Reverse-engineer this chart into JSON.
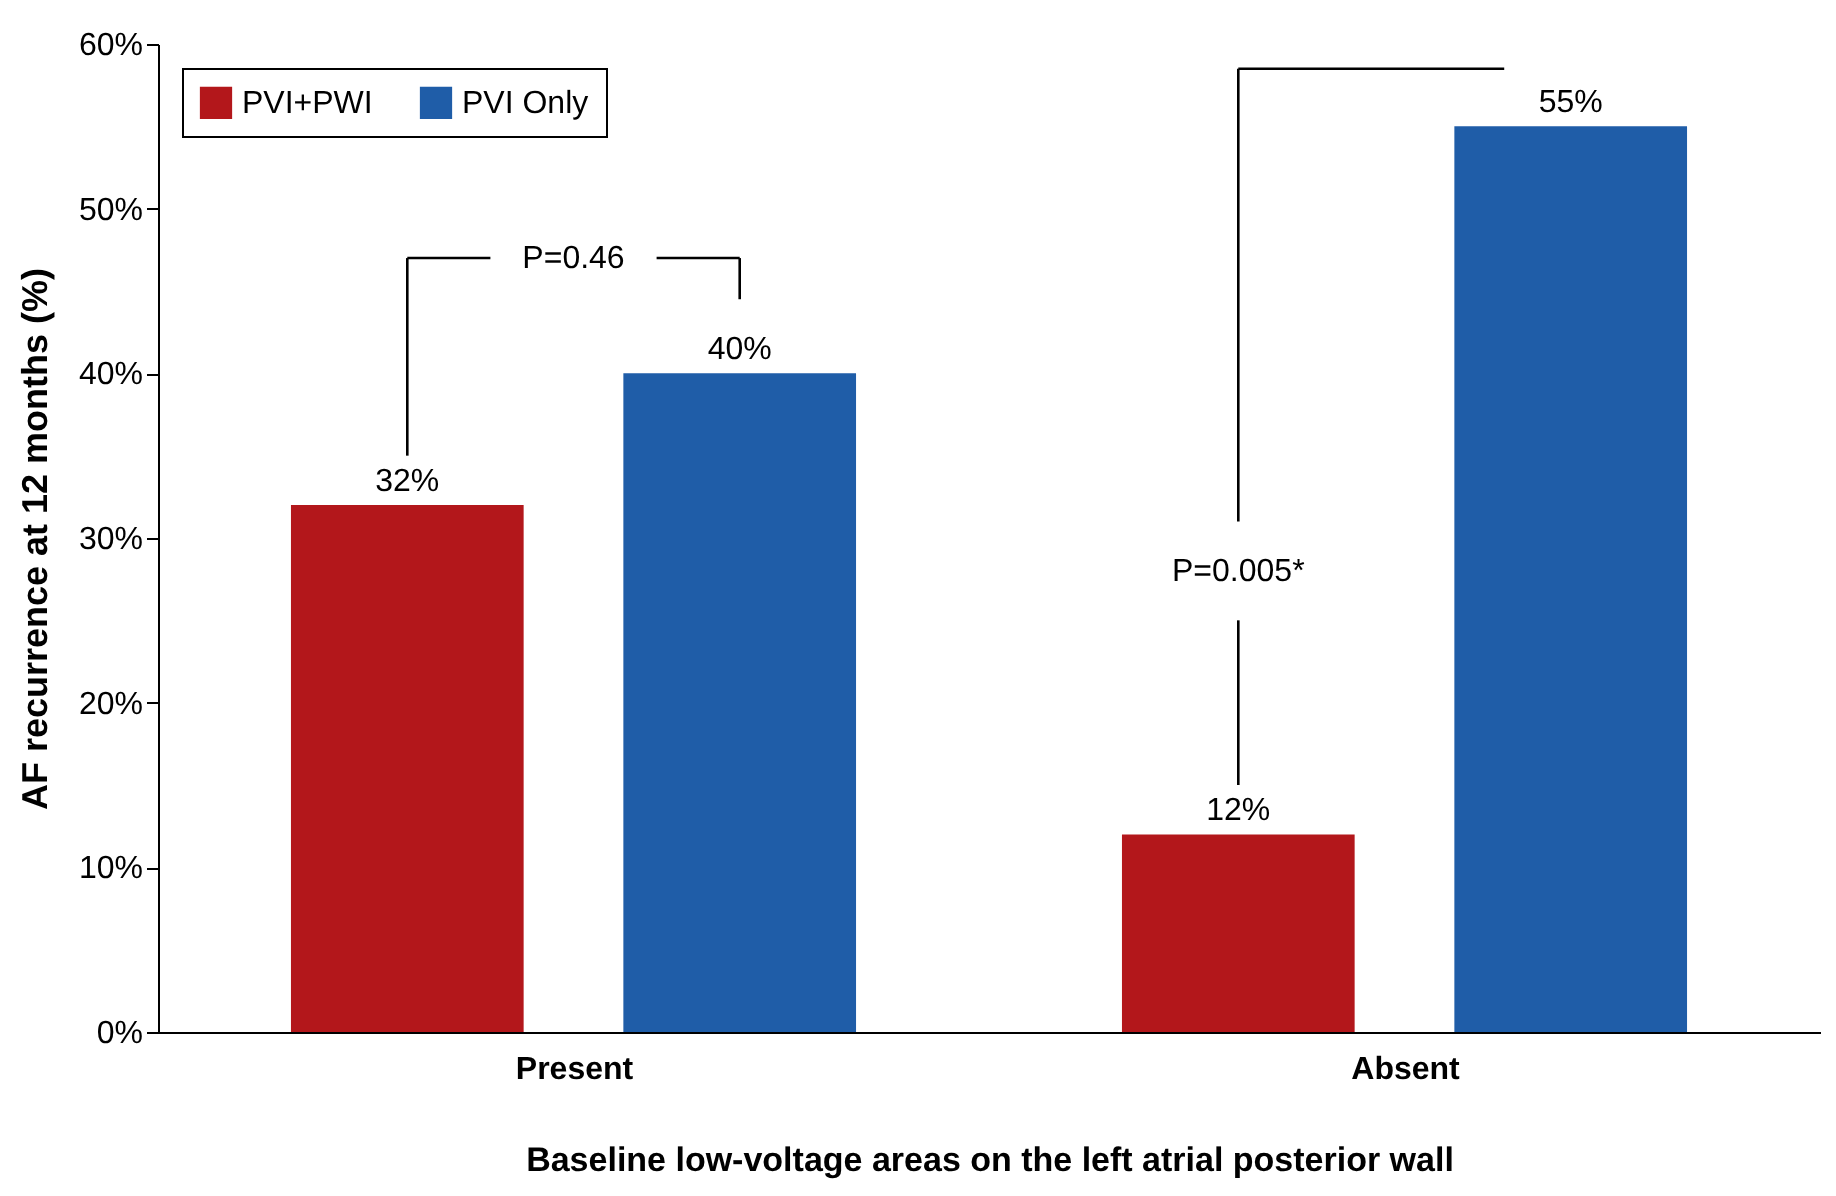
{
  "chart_data": {
    "type": "bar",
    "categories": [
      "Present",
      "Absent"
    ],
    "series": [
      {
        "name": "PVI+PWI",
        "color": "#b3171b",
        "values": [
          32,
          12
        ],
        "value_labels": [
          "32%",
          "12%"
        ]
      },
      {
        "name": "PVI Only",
        "color": "#1f5da8",
        "values": [
          40,
          55
        ],
        "value_labels": [
          "40%",
          "55%"
        ]
      }
    ],
    "xlabel": "Baseline low-voltage areas on the left atrial posterior wall",
    "ylabel": "AF recurrence at 12 months (%)",
    "ylim": [
      0,
      60
    ],
    "yticks": [
      {
        "value": 0,
        "label": "0%"
      },
      {
        "value": 10,
        "label": "10%"
      },
      {
        "value": 20,
        "label": "20%"
      },
      {
        "value": 30,
        "label": "30%"
      },
      {
        "value": 40,
        "label": "40%"
      },
      {
        "value": 50,
        "label": "50%"
      },
      {
        "value": 60,
        "label": "60%"
      }
    ],
    "annotations": [
      "P=0.46",
      "P=0.005*"
    ],
    "legend": "top left",
    "grid": false
  }
}
